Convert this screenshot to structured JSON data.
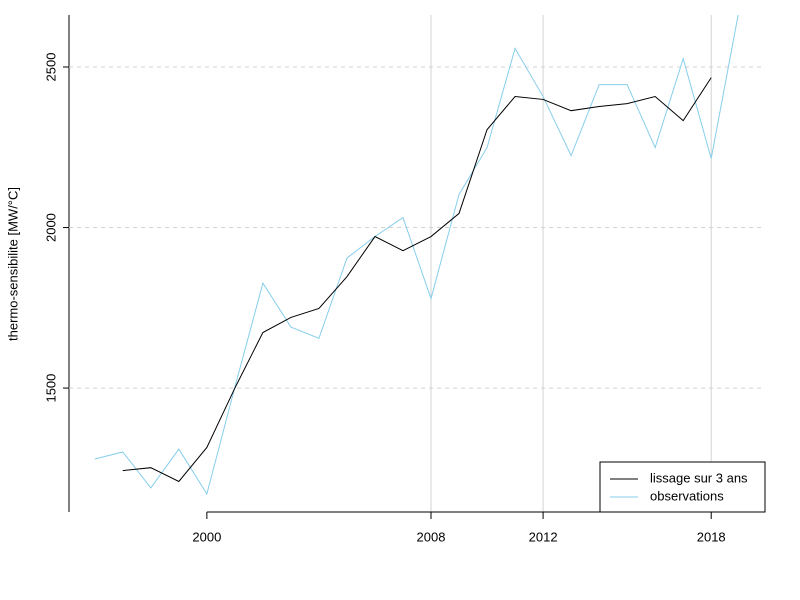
{
  "chart_data": {
    "type": "line",
    "ylabel": "thermo-sensibilite [MW/°C]",
    "x": [
      1996,
      1997,
      1998,
      1999,
      2000,
      2001,
      2002,
      2003,
      2004,
      2005,
      2006,
      2007,
      2008,
      2009,
      2010,
      2011,
      2012,
      2013,
      2014,
      2015,
      2016,
      2017,
      2018,
      2019
    ],
    "series": [
      {
        "name": "lissage sur 3 ans",
        "color": "#000000",
        "values": [
          null,
          1243,
          1252,
          1209,
          1315,
          1500,
          1673,
          1720,
          1748,
          1847,
          1972,
          1928,
          1972,
          2044,
          2305,
          2408,
          2399,
          2364,
          2377,
          2386,
          2408,
          2333,
          2467,
          null
        ]
      },
      {
        "name": "observations",
        "color": "#87ceeb",
        "values": [
          1279,
          1301,
          1189,
          1310,
          1170,
          1503,
          1827,
          1690,
          1655,
          1905,
          1972,
          2031,
          1779,
          2103,
          2249,
          2558,
          2408,
          2224,
          2445,
          2445,
          2249,
          2526,
          2215,
          2680
        ]
      }
    ],
    "xlim": [
      1995.08,
      2019.92
    ],
    "xticks": [
      2000,
      2008,
      2012,
      2018
    ],
    "ylim": [
      1114,
      2662
    ],
    "yticks": [
      1500,
      2000,
      2500
    ],
    "grid": true,
    "vgrid": [
      2008,
      2012,
      2018
    ],
    "legend": "bottomright"
  }
}
